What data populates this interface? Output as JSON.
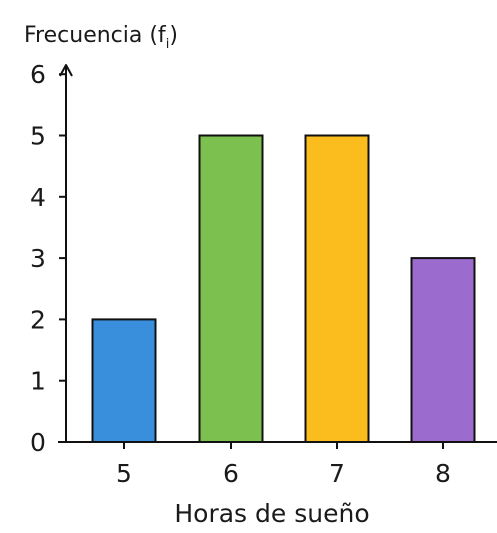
{
  "chart_data": {
    "type": "bar",
    "ylabel_main": "Frecuencia (f",
    "ylabel_sub": "i",
    "ylabel_close": ")",
    "xlabel": "Horas de sueño",
    "categories": [
      "5",
      "6",
      "7",
      "8"
    ],
    "values": [
      2,
      5,
      5,
      3
    ],
    "ylim": [
      0,
      6
    ],
    "yticks": [
      "0",
      "1",
      "2",
      "3",
      "4",
      "5",
      "6"
    ],
    "grid": false,
    "legend": "none",
    "bar_colors": [
      "#3a8fdc",
      "#7cc04f",
      "#fbbd1d",
      "#9b6ccd"
    ],
    "bar_outline": "#111111",
    "axis_color": "#111111"
  }
}
